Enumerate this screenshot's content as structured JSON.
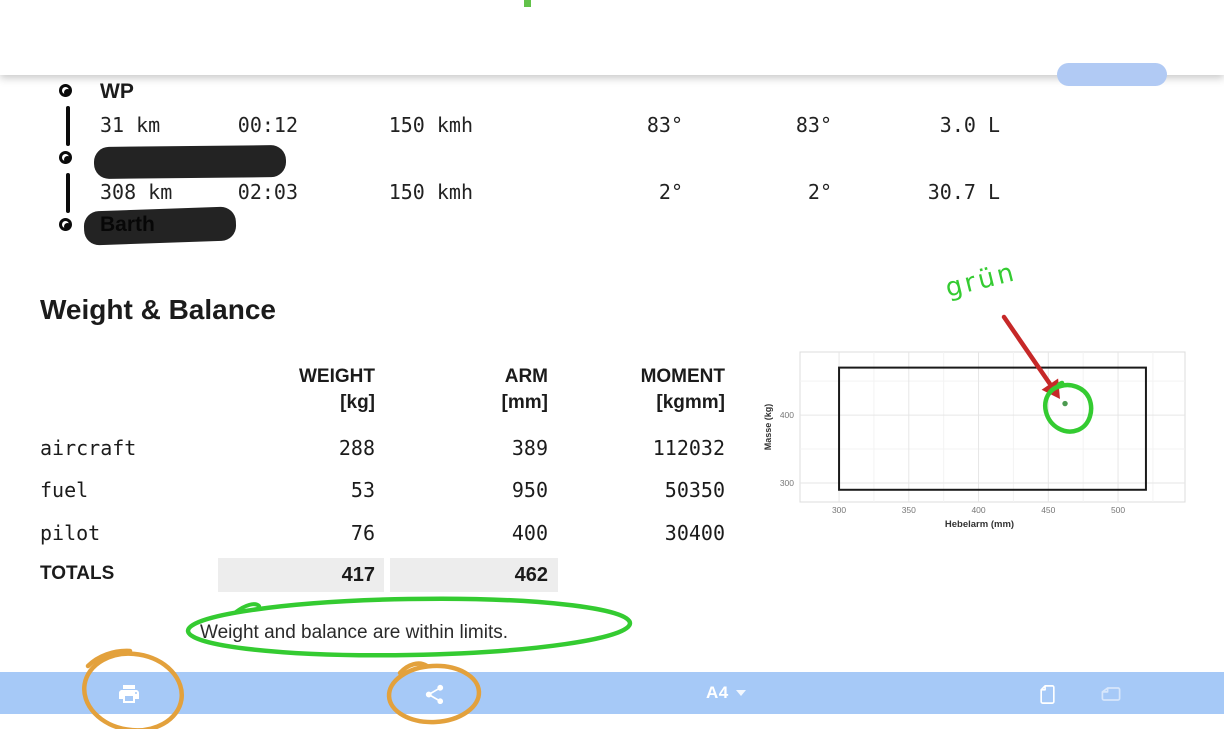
{
  "itinerary": {
    "waypoints": [
      {
        "label": "WP",
        "redacted": false
      },
      {
        "label": "",
        "redacted": true
      },
      {
        "label": "Barth",
        "redacted": true
      }
    ],
    "legs": [
      {
        "distance": "31 km",
        "time": "00:12",
        "speed": "150 kmh",
        "track": "83°",
        "heading": "83°",
        "fuel": "3.0 L"
      },
      {
        "distance": "308 km",
        "time": "02:03",
        "speed": "150 kmh",
        "track": "2°",
        "heading": "2°",
        "fuel": "30.7 L"
      }
    ]
  },
  "weight_balance": {
    "title": "Weight & Balance",
    "headers": {
      "weight_l1": "WEIGHT",
      "weight_l2": "[kg]",
      "arm_l1": "ARM",
      "arm_l2": "[mm]",
      "moment_l1": "MOMENT",
      "moment_l2": "[kgmm]"
    },
    "rows": [
      {
        "label": "aircraft",
        "weight": "288",
        "arm": "389",
        "moment": "112032"
      },
      {
        "label": "fuel",
        "weight": "53",
        "arm": "950",
        "moment": "50350"
      },
      {
        "label": "pilot",
        "weight": "76",
        "arm": "400",
        "moment": "30400"
      }
    ],
    "totals": {
      "label": "TOTALS",
      "weight": "417",
      "arm": "462"
    },
    "note": "Weight and balance are within limits."
  },
  "chart_data": {
    "type": "scatter",
    "title": "",
    "xlabel": "Hebelarm (mm)",
    "ylabel": "Masse (kg)",
    "xlim": [
      272,
      548
    ],
    "ylim": [
      272,
      493
    ],
    "x_ticks": [
      300,
      350,
      400,
      450,
      500
    ],
    "y_ticks": [
      300,
      400
    ],
    "x_minor": [
      325,
      375,
      425,
      475,
      525
    ],
    "y_minor": [
      350,
      450
    ],
    "grid": true,
    "legend": "none",
    "envelope": {
      "x": [
        300,
        520
      ],
      "y": [
        290,
        470
      ]
    },
    "points": [
      {
        "x": 462,
        "y": 417
      }
    ]
  },
  "annotations": {
    "gruen_label": "grün"
  },
  "toolbar": {
    "paper_size_label": "A4"
  },
  "colors": {
    "toolbar_blue": "#a6c9f7",
    "pill_blue": "#b1caf4",
    "totals_cell_gray": "#ededed",
    "annotation_green": "#34cb31",
    "annotation_orange": "#e3a13c",
    "annotation_red": "#c62828",
    "chart_point_green": "#4c9a50"
  }
}
